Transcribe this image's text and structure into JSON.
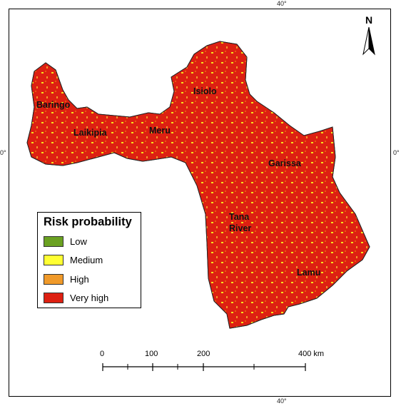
{
  "graticule": {
    "top_lon": "40°",
    "bottom_lon": "40°",
    "left_lat": "0°",
    "right_lat": "0°"
  },
  "regions": [
    {
      "key": "baringo",
      "label": "Baringo"
    },
    {
      "key": "laikipia",
      "label": "Laikipia"
    },
    {
      "key": "meru",
      "label": "Meru"
    },
    {
      "key": "isiolo",
      "label": "Isiolo"
    },
    {
      "key": "garissa",
      "label": "Garissa"
    },
    {
      "key": "tana",
      "label": "Tana\nRiver"
    },
    {
      "key": "lamu",
      "label": "Lamu"
    }
  ],
  "legend": {
    "title": "Risk probability",
    "items": [
      {
        "label": "Low",
        "color": "#6aa121"
      },
      {
        "label": "Medium",
        "color": "#ffff33"
      },
      {
        "label": "High",
        "color": "#f09a2a"
      },
      {
        "label": "Very high",
        "color": "#dd2012"
      }
    ]
  },
  "north_arrow": {
    "letter": "N"
  },
  "scale_bar": {
    "labels": [
      "0",
      "100",
      "200",
      "400 km"
    ]
  }
}
